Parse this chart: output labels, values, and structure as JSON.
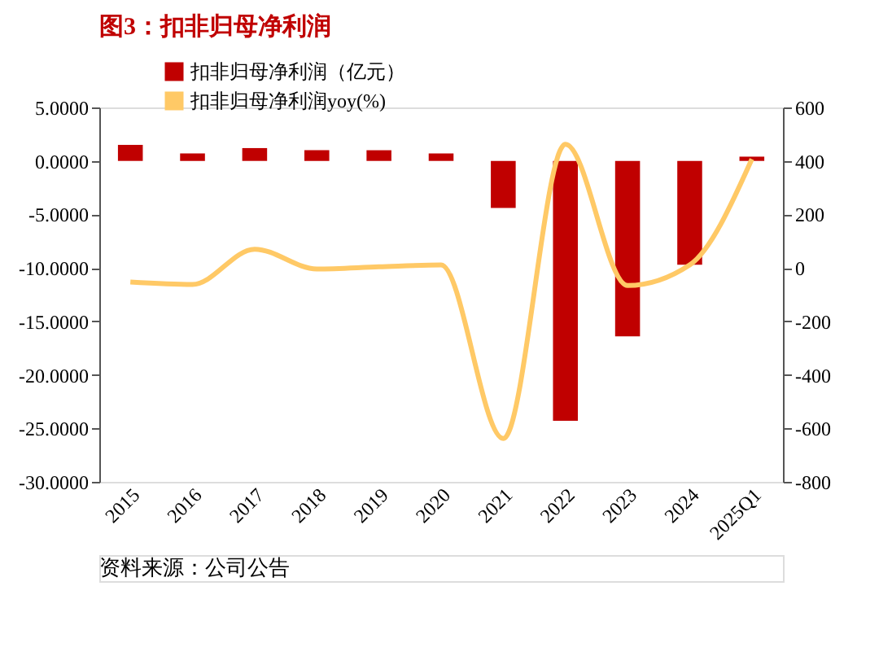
{
  "chart_data": {
    "type": "bar",
    "title": "图3：扣非归母净利润",
    "categories": [
      "2015",
      "2016",
      "2017",
      "2018",
      "2019",
      "2020",
      "2021",
      "2022",
      "2023",
      "2024",
      "2025Q1"
    ],
    "series": [
      {
        "name": "扣非归母净利润（亿元）",
        "color": "#c00000",
        "values": [
          1.5,
          0.7,
          1.2,
          1.0,
          1.0,
          0.7,
          -4.4,
          -24.3,
          -16.4,
          -9.7,
          0.4
        ]
      },
      {
        "name": "扣非归母净利润yoy(%)",
        "type": "line",
        "axis": "y2",
        "color": "#ffc966",
        "values": [
          -53,
          -62,
          70,
          -4,
          4,
          11,
          -638,
          462,
          -66,
          11,
          407
        ]
      }
    ],
    "ylim": [
      -30,
      5
    ],
    "yticks": [
      {
        "value": 5,
        "label": "5.0000"
      },
      {
        "value": 0,
        "label": "0.0000"
      },
      {
        "value": -5,
        "label": "-5.0000"
      },
      {
        "value": -10,
        "label": "-10.0000"
      },
      {
        "value": -15,
        "label": "-15.0000"
      },
      {
        "value": -20,
        "label": "-20.0000"
      },
      {
        "value": -25,
        "label": "-25.0000"
      },
      {
        "value": -30,
        "label": "-30.0000"
      }
    ],
    "y2lim": [
      -800,
      600
    ],
    "y2ticks": [
      600,
      400,
      200,
      0,
      -200,
      -400,
      -600,
      -800
    ],
    "legend": "top",
    "grid": false,
    "line_style": "solid",
    "marker": "none",
    "annotations": [
      "资料来源：公司公告"
    ]
  }
}
